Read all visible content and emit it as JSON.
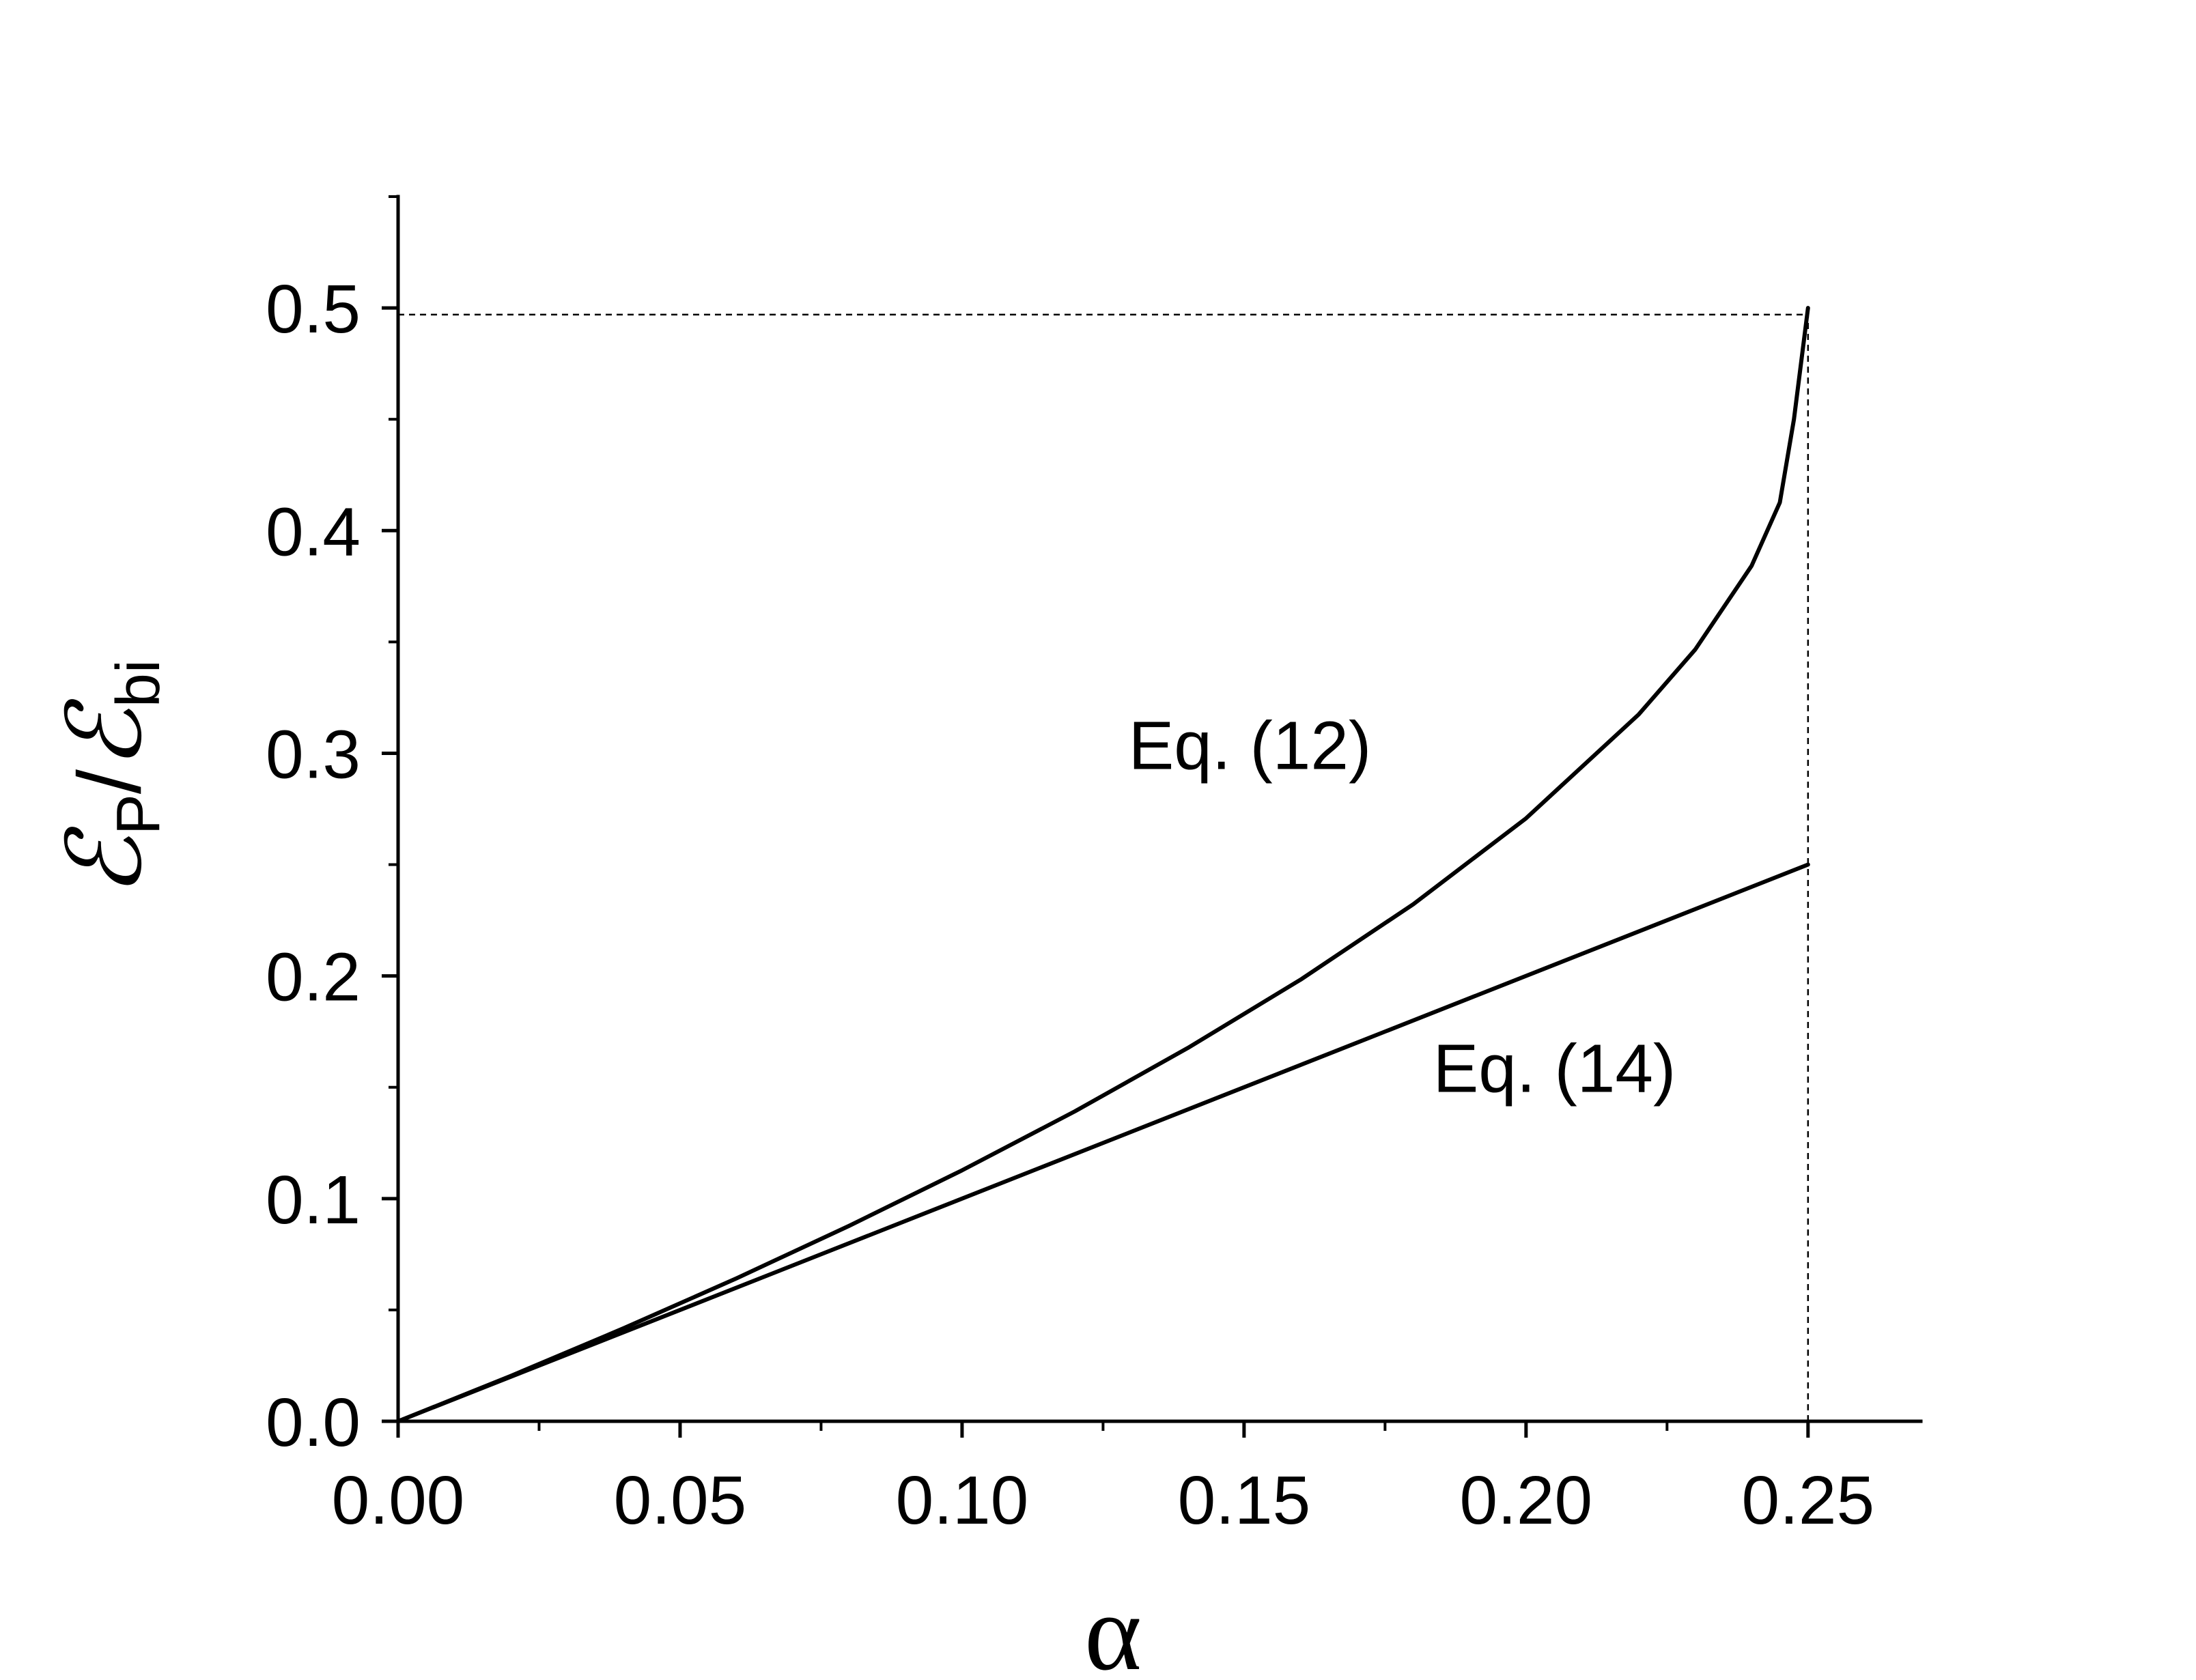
{
  "chart_data": {
    "type": "line",
    "title": "",
    "xlabel": "α",
    "ylabel": {
      "main_1": "ℰ",
      "sub_1": "P",
      "slash": "/",
      "main_2": "ℰ",
      "sub_2": "bi"
    },
    "xlim": [
      0.0,
      0.27
    ],
    "ylim": [
      0.0,
      0.55
    ],
    "x_ticks": [
      0.0,
      0.05,
      0.1,
      0.15,
      0.2,
      0.25
    ],
    "x_tick_labels": [
      "0.00",
      "0.05",
      "0.10",
      "0.15",
      "0.20",
      "0.25"
    ],
    "x_minor_ticks": [
      0.025,
      0.075,
      0.125,
      0.175,
      0.225
    ],
    "y_ticks": [
      0.0,
      0.1,
      0.2,
      0.3,
      0.4,
      0.5
    ],
    "y_tick_labels": [
      "0.0",
      "0.1",
      "0.2",
      "0.3",
      "0.4",
      "0.5"
    ],
    "y_minor_ticks": [
      0.05,
      0.15,
      0.25,
      0.35,
      0.45,
      0.55
    ],
    "grid": false,
    "legend": "none",
    "line_color": "#000000",
    "series": [
      {
        "x": [
          0.0,
          0.02,
          0.04,
          0.06,
          0.08,
          0.1,
          0.12,
          0.14,
          0.16,
          0.18,
          0.2,
          0.22,
          0.23,
          0.24,
          0.245,
          0.2475,
          0.25
        ],
        "y": [
          0.0,
          0.0204,
          0.0418,
          0.0642,
          0.0878,
          0.1127,
          0.1392,
          0.1676,
          0.1983,
          0.2322,
          0.2708,
          0.3175,
          0.3466,
          0.3842,
          0.4126,
          0.45,
          0.5
        ]
      },
      {
        "x": [
          0.0,
          0.25
        ],
        "y": [
          0.0,
          0.25
        ]
      }
    ],
    "reference_lines": [
      {
        "orientation": "horizontal",
        "y": 0.497,
        "x_range": [
          0.0,
          0.25
        ],
        "style": "dashed"
      },
      {
        "orientation": "vertical",
        "x": 0.25,
        "y_range": [
          0.0,
          0.497
        ],
        "style": "dashed"
      }
    ],
    "annotations": [
      {
        "text": "Eq. (12)",
        "x": 0.1295,
        "y": 0.293
      },
      {
        "text": "Eq. (14)",
        "x": 0.1835,
        "y": 0.148
      }
    ]
  }
}
